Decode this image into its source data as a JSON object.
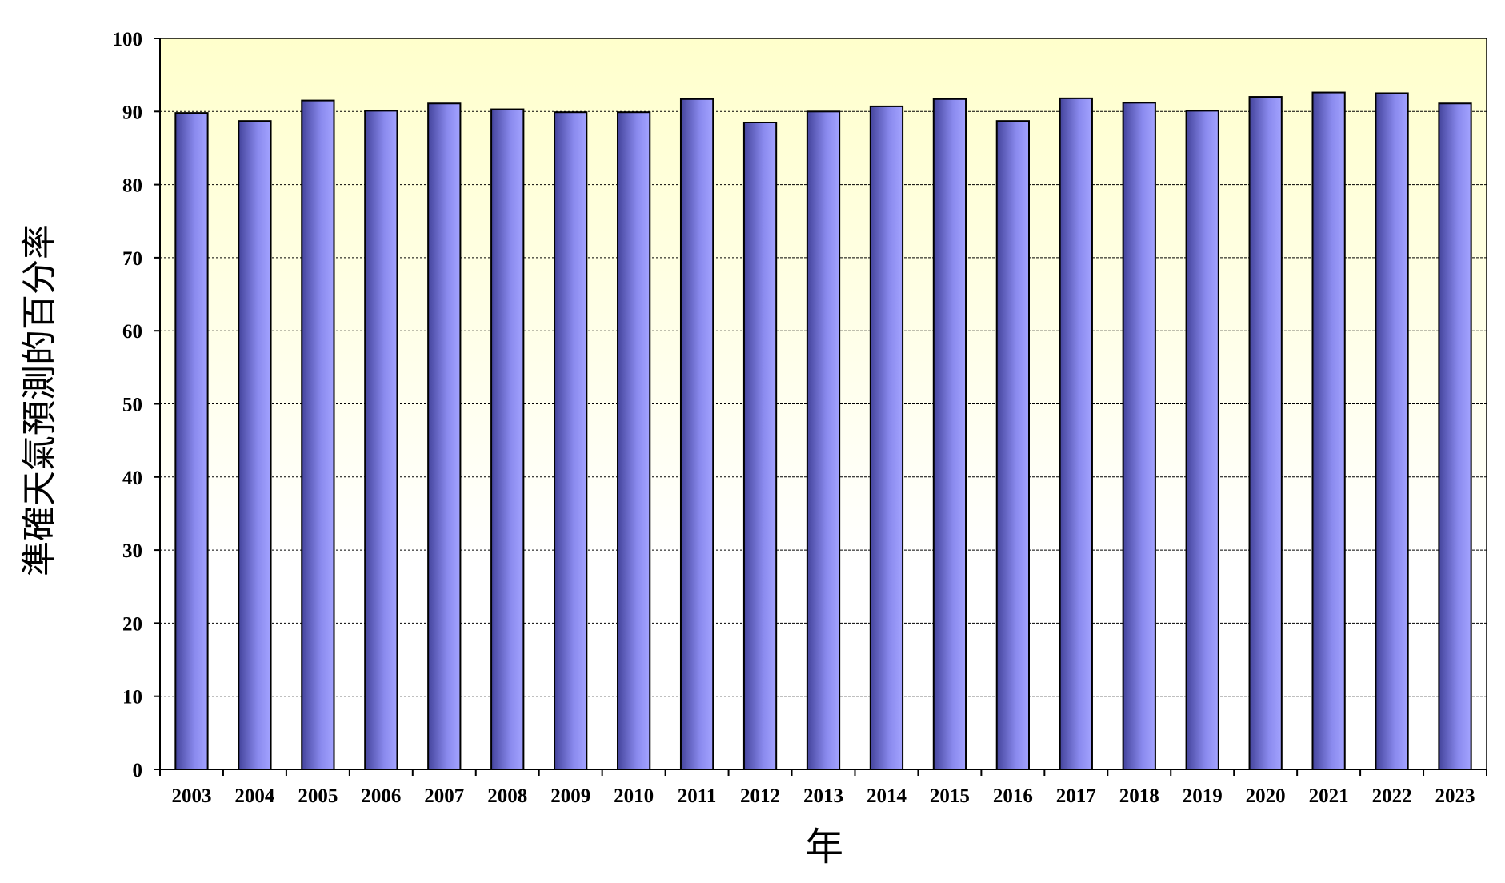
{
  "chart_data": {
    "type": "bar",
    "title": "",
    "xlabel": "年",
    "ylabel": "準確天氣預測的百分率",
    "categories": [
      "2003",
      "2004",
      "2005",
      "2006",
      "2007",
      "2008",
      "2009",
      "2010",
      "2011",
      "2012",
      "2013",
      "2014",
      "2015",
      "2016",
      "2017",
      "2018",
      "2019",
      "2020",
      "2021",
      "2022",
      "2023"
    ],
    "values": [
      89.8,
      88.7,
      91.5,
      90.1,
      91.1,
      90.3,
      89.9,
      89.9,
      91.7,
      88.5,
      90.0,
      90.7,
      91.7,
      88.7,
      91.8,
      91.2,
      90.1,
      92.0,
      92.6,
      92.5,
      91.1
    ],
    "ylim": [
      0,
      100
    ],
    "yticks": [
      0,
      10,
      20,
      30,
      40,
      50,
      60,
      70,
      80,
      90,
      100
    ],
    "grid": true,
    "legend": "none",
    "colors": {
      "bar_dark": "#44449c",
      "bar_mid": "#8a8aee",
      "bar_light": "#a3a3ff",
      "background_top": "#ffffcc",
      "background_bottom": "#ffffff",
      "axis": "#000000"
    }
  }
}
